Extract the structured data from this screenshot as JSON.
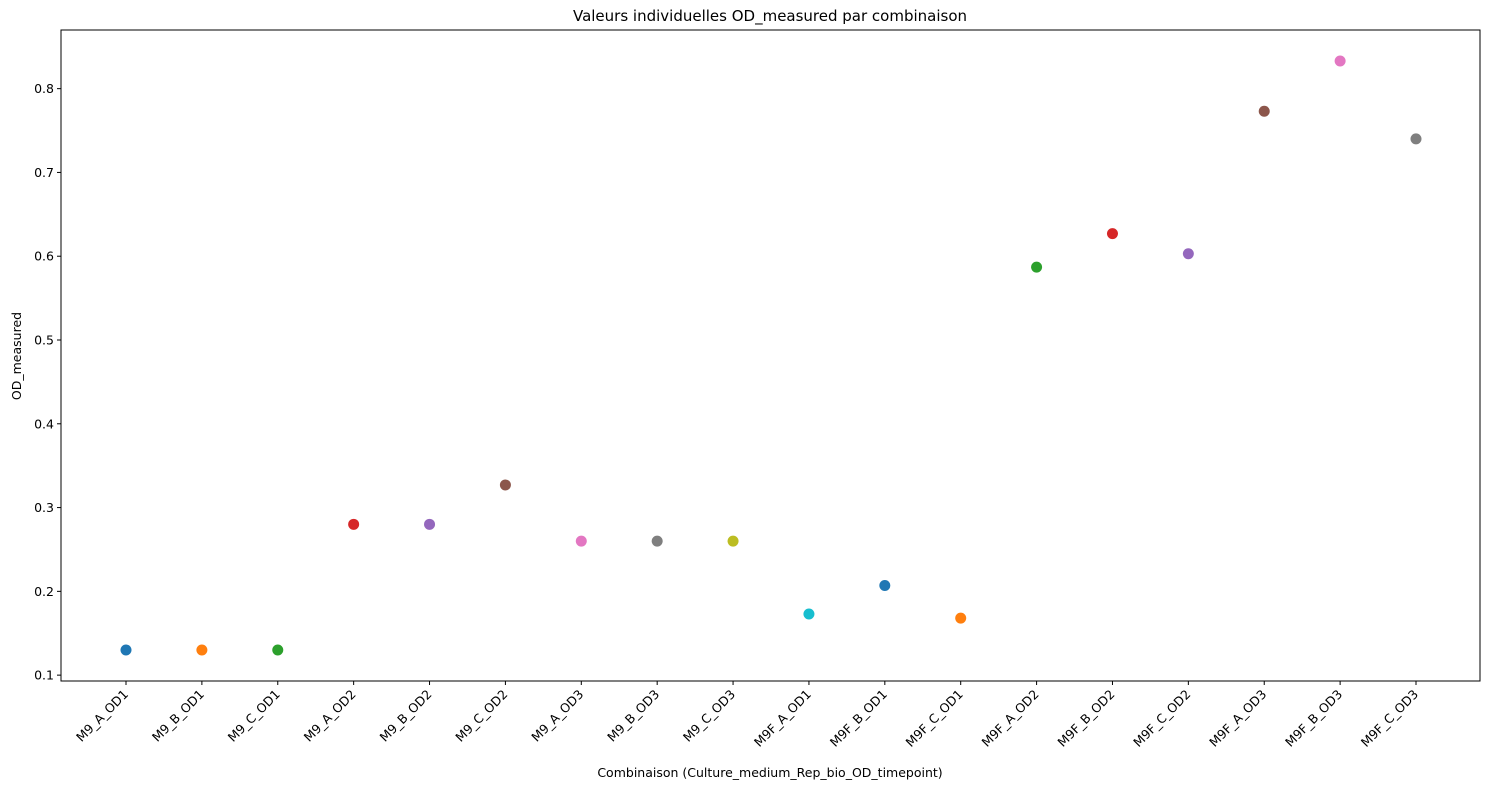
{
  "chart_data": {
    "type": "scatter",
    "title": "Valeurs individuelles OD_measured par combinaison",
    "xlabel": "Combinaison (Culture_medium_Rep_bio_OD_timepoint)",
    "ylabel": "OD_measured",
    "ylim": [
      0.093,
      0.87
    ],
    "yticks": [
      0.1,
      0.2,
      0.3,
      0.4,
      0.5,
      0.6,
      0.7,
      0.8
    ],
    "ytick_labels": [
      "0.1",
      "0.2",
      "0.3",
      "0.4",
      "0.5",
      "0.6",
      "0.7",
      "0.8"
    ],
    "grid": false,
    "categories": [
      "M9_A_OD1",
      "M9_B_OD1",
      "M9_C_OD1",
      "M9_A_OD2",
      "M9_B_OD2",
      "M9_C_OD2",
      "M9_A_OD3",
      "M9_B_OD3",
      "M9_C_OD3",
      "M9F_A_OD1",
      "M9F_B_OD1",
      "M9F_C_OD1",
      "M9F_A_OD2",
      "M9F_B_OD2",
      "M9F_C_OD2",
      "M9F_A_OD3",
      "M9F_B_OD3",
      "M9F_C_OD3"
    ],
    "values": [
      0.13,
      0.13,
      0.13,
      0.28,
      0.28,
      0.327,
      0.26,
      0.26,
      0.26,
      0.173,
      0.207,
      0.168,
      0.587,
      0.627,
      0.603,
      0.773,
      0.833,
      0.74
    ],
    "colors": [
      "#1f77b4",
      "#ff7f0e",
      "#2ca02c",
      "#d62728",
      "#9467bd",
      "#8c564b",
      "#e377c2",
      "#7f7f7f",
      "#bcbd22",
      "#17becf",
      "#1f77b4",
      "#ff7f0e",
      "#2ca02c",
      "#d62728",
      "#9467bd",
      "#8c564b",
      "#e377c2",
      "#7f7f7f"
    ]
  }
}
